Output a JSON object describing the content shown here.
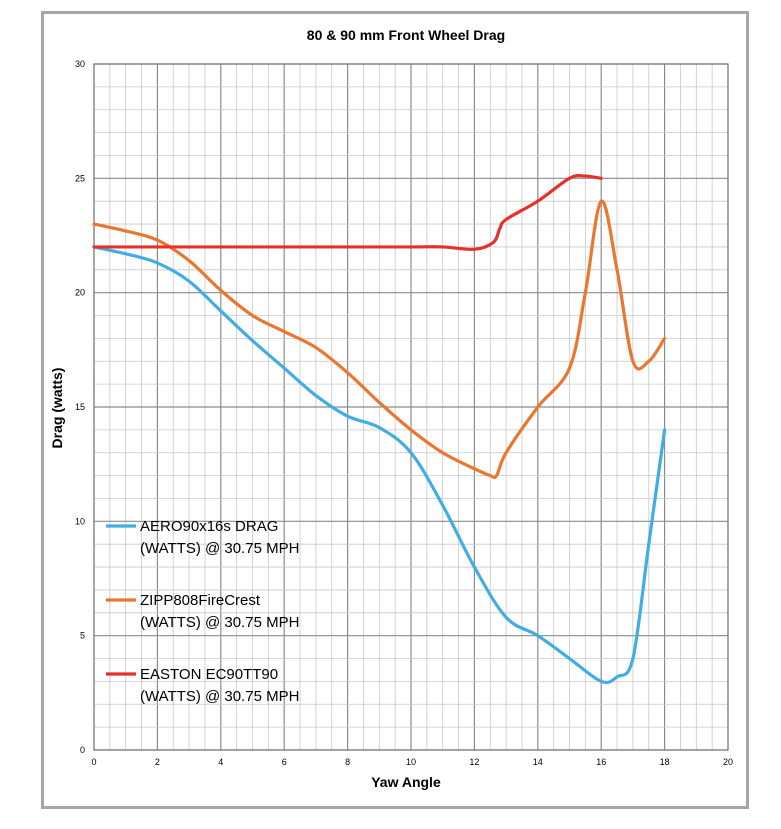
{
  "chart_data": {
    "type": "line",
    "title": "80 & 90 mm Front Wheel Drag",
    "xlabel": "Yaw Angle",
    "ylabel": "Drag (watts)",
    "xlim": [
      0,
      20
    ],
    "ylim": [
      0,
      30
    ],
    "xticks": [
      0,
      2,
      4,
      6,
      8,
      10,
      12,
      14,
      16,
      18,
      20
    ],
    "yticks": [
      0,
      5,
      10,
      15,
      20,
      25,
      30
    ],
    "grid": true,
    "legend_position": "lower-left",
    "series": [
      {
        "name": "AERO90x16s DRAG (WATTS) @ 30.75 MPH",
        "legend_lines": [
          "AERO90x16s DRAG",
          "(WATTS) @ 30.75 MPH"
        ],
        "color": "#41ade3",
        "x": [
          0,
          1,
          2,
          3,
          4,
          5,
          6,
          7,
          8,
          9,
          10,
          11,
          12,
          13,
          14,
          15,
          16,
          16.5,
          17,
          17.5,
          18
        ],
        "y": [
          22,
          21.7,
          21.3,
          20.5,
          19.2,
          17.9,
          16.7,
          15.5,
          14.6,
          14.1,
          13,
          10.7,
          8,
          5.8,
          5,
          4,
          3,
          3.2,
          4,
          9,
          14
        ]
      },
      {
        "name": "ZIPP808FireCrest (WATTS) @ 30.75 MPH",
        "legend_lines": [
          "ZIPP808FireCrest",
          "(WATTS) @ 30.75 MPH"
        ],
        "color": "#ea7630",
        "x": [
          0,
          1,
          2,
          3,
          4,
          5,
          6,
          7,
          8,
          9,
          10,
          11,
          12,
          12.5,
          12.7,
          13,
          14,
          15,
          15.5,
          16,
          16.5,
          17,
          17.5,
          18
        ],
        "y": [
          23,
          22.7,
          22.3,
          21.4,
          20.1,
          19,
          18.3,
          17.6,
          16.5,
          15.2,
          14,
          13,
          12.3,
          12,
          12,
          13,
          15,
          16.7,
          20,
          24,
          21,
          17,
          17,
          18
        ]
      },
      {
        "name": "EASTON EC90TT90 (WATTS) @ 30.75 MPH",
        "legend_lines": [
          "EASTON EC90TT90",
          "(WATTS) @ 30.75 MPH"
        ],
        "color": "#e8302a",
        "x": [
          0,
          2,
          4,
          6,
          8,
          10,
          11,
          12,
          12.6,
          12.8,
          13,
          14,
          15,
          15.5,
          16
        ],
        "y": [
          22,
          22,
          22,
          22,
          22,
          22,
          22,
          21.9,
          22.2,
          22.8,
          23.2,
          24,
          25,
          25.1,
          25
        ]
      }
    ]
  }
}
